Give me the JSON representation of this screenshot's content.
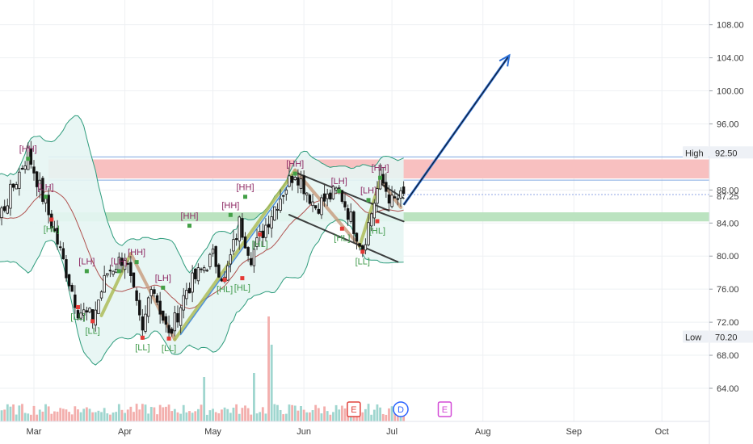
{
  "chart_data": {
    "type": "candlestick",
    "y_axis": {
      "ticks": [
        "108.00",
        "104.00",
        "100.00",
        "96.00",
        "92.50",
        "88.00",
        "87.25",
        "84.00",
        "80.00",
        "76.00",
        "72.00",
        "70.20",
        "68.00",
        "64.00"
      ],
      "range": [
        60.0,
        110.0
      ],
      "high_tag": {
        "label": "High",
        "value": "92.50"
      },
      "low_tag": {
        "label": "Low",
        "value": "70.20"
      },
      "last_price": "87.25"
    },
    "x_axis": {
      "ticks": [
        "Mar",
        "Apr",
        "May",
        "Jun",
        "Jul",
        "Aug",
        "Sep",
        "Oct"
      ]
    },
    "zones": [
      {
        "name": "resistance",
        "low": 89.4,
        "high": 91.7,
        "color": "#f8bdbd"
      },
      {
        "name": "support",
        "low": 84.2,
        "high": 85.3,
        "color": "#b7e2bd"
      }
    ],
    "pivot_labels": [
      {
        "text": "[HH]",
        "kind": "high",
        "date": "2020-02-28",
        "price": 93.0
      },
      {
        "text": "HH",
        "kind": "high",
        "date": "2020-02-03",
        "price": 89.7
      },
      {
        "text": "[LH]",
        "kind": "high",
        "date": "2020-03-05",
        "price": 88.4
      },
      {
        "text": "[HL]",
        "kind": "low",
        "date": "2020-02-11",
        "price": 81.0
      },
      {
        "text": "[HL]",
        "kind": "low",
        "date": "2020-03-07",
        "price": 83.3
      },
      {
        "text": "[LH]",
        "kind": "high",
        "date": "2020-03-19",
        "price": 79.4
      },
      {
        "text": "[LH]",
        "kind": "high",
        "date": "2020-03-30",
        "price": 79.4
      },
      {
        "text": "[HH]",
        "kind": "high",
        "date": "2020-04-05",
        "price": 80.5
      },
      {
        "text": "[LH]",
        "kind": "high",
        "date": "2020-04-14",
        "price": 77.4
      },
      {
        "text": "[LL]",
        "kind": "low",
        "date": "2020-03-16",
        "price": 72.7
      },
      {
        "text": "[LL]",
        "kind": "low",
        "date": "2020-03-21",
        "price": 71.0
      },
      {
        "text": "[LL]",
        "kind": "low",
        "date": "2020-04-07",
        "price": 69.0
      },
      {
        "text": "[LL]",
        "kind": "low",
        "date": "2020-04-16",
        "price": 68.9
      },
      {
        "text": "[HH]",
        "kind": "high",
        "date": "2020-04-23",
        "price": 84.9
      },
      {
        "text": "[HH]",
        "kind": "high",
        "date": "2020-05-07",
        "price": 86.2
      },
      {
        "text": "[HH]",
        "kind": "high",
        "date": "2020-05-12",
        "price": 88.4
      },
      {
        "text": "[HL]",
        "kind": "low",
        "date": "2020-05-05",
        "price": 76.0
      },
      {
        "text": "[HL]",
        "kind": "low",
        "date": "2020-05-11",
        "price": 76.2
      },
      {
        "text": "[HL]",
        "kind": "low",
        "date": "2020-05-17",
        "price": 81.5
      },
      {
        "text": "[HH]",
        "kind": "high",
        "date": "2020-05-29",
        "price": 91.2
      },
      {
        "text": "[LH]",
        "kind": "high",
        "date": "2020-06-13",
        "price": 89.1
      },
      {
        "text": "[LH]",
        "kind": "high",
        "date": "2020-06-23",
        "price": 88.0
      },
      {
        "text": "[HH]",
        "kind": "high",
        "date": "2020-06-27",
        "price": 90.7
      },
      {
        "text": "[HL]",
        "kind": "low",
        "date": "2020-06-14",
        "price": 82.2
      },
      {
        "text": "[HL]",
        "kind": "low",
        "date": "2020-06-26",
        "price": 83.1
      },
      {
        "text": "[LL]",
        "kind": "low",
        "date": "2020-06-21",
        "price": 79.4
      }
    ],
    "event_markers": [
      {
        "text": "E",
        "date": "2020-06-18",
        "color": "#e0453f"
      },
      {
        "text": "D",
        "date": "2020-07-04",
        "color": "#2962ff"
      },
      {
        "text": "E",
        "date": "2020-07-19",
        "color": "#d34bd6"
      }
    ],
    "projection_arrow": {
      "from": {
        "date": "2020-07-05",
        "price": 86.2
      },
      "to": {
        "date": "2020-08-10",
        "price": 104.3
      }
    },
    "colors": {
      "up": "#26a69a",
      "down": "#ef5350",
      "band_fill": "#e6f5f3",
      "band_line": "#2e9c7c",
      "mid_line": "#b0524f",
      "arrow": "#2a6ed6",
      "pivot_high": "#8e2a64",
      "pivot_low": "#3f9a4a"
    }
  }
}
